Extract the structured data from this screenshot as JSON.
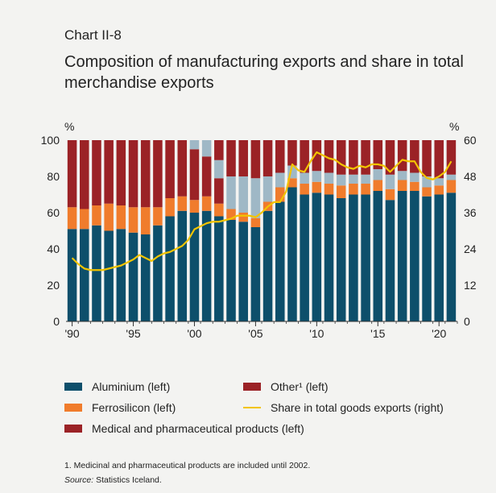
{
  "header": {
    "chart_number": "Chart II-8",
    "title": "Composition of manufacturing exports and share in total merchandise exports"
  },
  "chart_data": {
    "type": "bar",
    "stacked": true,
    "left_axis": {
      "unit": "%",
      "ylim": [
        0,
        100
      ],
      "ticks": [
        "0",
        "20",
        "40",
        "60",
        "80",
        "100"
      ]
    },
    "right_axis": {
      "unit": "%",
      "ylim": [
        0,
        60
      ],
      "ticks": [
        "0",
        "12",
        "24",
        "36",
        "48",
        "60"
      ]
    },
    "x_tick_labels": [
      "'90",
      "'95",
      "'00",
      "'05",
      "'10",
      "'15",
      "'20"
    ],
    "x_tick_years": [
      1990,
      1995,
      2000,
      2005,
      2010,
      2015,
      2020
    ],
    "categories": [
      1990,
      1991,
      1992,
      1993,
      1994,
      1995,
      1996,
      1997,
      1998,
      1999,
      2000,
      2001,
      2002,
      2003,
      2004,
      2005,
      2006,
      2007,
      2008,
      2009,
      2010,
      2011,
      2012,
      2013,
      2014,
      2015,
      2016,
      2017,
      2018,
      2019,
      2020,
      2021
    ],
    "series": [
      {
        "name": "Aluminium (left)",
        "color": "#0d4f6b",
        "axis": "left",
        "values": [
          51,
          51,
          53,
          50,
          51,
          49,
          48,
          53,
          58,
          61,
          60,
          61,
          58,
          56,
          55,
          52,
          61,
          66,
          74,
          70,
          71,
          70,
          68,
          70,
          70,
          72,
          67,
          72,
          72,
          69,
          70,
          71
        ]
      },
      {
        "name": "Ferrosilicon (left)",
        "color": "#f07c2c",
        "axis": "left",
        "values": [
          12,
          11,
          11,
          15,
          13,
          14,
          15,
          10,
          10,
          8,
          7,
          8,
          7,
          6,
          5,
          5,
          5,
          8,
          5,
          6,
          6,
          6,
          7,
          6,
          6,
          6,
          6,
          6,
          5,
          5,
          5,
          7
        ]
      },
      {
        "name": "Medical and pharmaceutical products (left)",
        "color": "#9b2226",
        "axis": "left",
        "values": [
          37,
          38,
          36,
          35,
          36,
          37,
          37,
          37,
          32,
          31,
          28,
          22,
          14,
          0,
          0,
          0,
          0,
          0,
          0,
          0,
          0,
          0,
          0,
          0,
          0,
          0,
          0,
          0,
          0,
          0,
          0,
          0
        ]
      },
      {
        "name": "grey",
        "color": "#9fb8c6",
        "axis": "left",
        "in_legend": false,
        "values": [
          0,
          0,
          0,
          0,
          0,
          0,
          0,
          0,
          0,
          0,
          5,
          9,
          10,
          18,
          20,
          22,
          14,
          8,
          7,
          6,
          6,
          6,
          6,
          5,
          5,
          6,
          8,
          5,
          5,
          6,
          4,
          3
        ]
      },
      {
        "name": "Other¹ (left)",
        "color": "#9b2226",
        "axis": "left",
        "values": [
          0,
          0,
          0,
          0,
          0,
          0,
          0,
          0,
          0,
          0,
          0,
          0,
          11,
          20,
          20,
          21,
          20,
          18,
          14,
          18,
          17,
          18,
          19,
          19,
          19,
          16,
          19,
          17,
          18,
          20,
          21,
          19
        ]
      },
      {
        "name": "Share in total goods exports (right)",
        "color": "#f2c400",
        "type": "line",
        "axis": "right",
        "x": [
          1990,
          1990.5,
          1991,
          1991.5,
          1992,
          1992.5,
          1993,
          1993.5,
          1994,
          1994.5,
          1995,
          1995.5,
          1996,
          1996.5,
          1997,
          1997.5,
          1998,
          1998.5,
          1999,
          1999.5,
          2000,
          2000.5,
          2001,
          2001.5,
          2002,
          2002.5,
          2003,
          2003.5,
          2004,
          2004.5,
          2005,
          2005.5,
          2006,
          2006.5,
          2007,
          2007.5,
          2008,
          2008.5,
          2009,
          2009.5,
          2010,
          2010.5,
          2011,
          2011.5,
          2012,
          2012.5,
          2013,
          2013.5,
          2014,
          2014.5,
          2015,
          2015.5,
          2016,
          2016.5,
          2017,
          2017.5,
          2018,
          2018.5,
          2019,
          2019.5,
          2020,
          2020.5,
          2021
        ],
        "values": [
          21,
          19,
          17.5,
          17,
          17,
          17,
          17.5,
          18,
          18.5,
          19.5,
          20.5,
          22,
          21,
          20,
          21.5,
          22.5,
          23,
          24,
          25,
          27,
          30.5,
          31.5,
          32.5,
          33,
          33,
          33.5,
          34,
          35,
          35,
          35,
          34.5,
          36,
          38,
          39.5,
          39.5,
          43,
          52,
          50,
          49.5,
          53,
          56,
          55,
          54,
          53.5,
          52,
          51,
          50.5,
          51.5,
          51,
          52,
          52,
          51.5,
          49.5,
          51.5,
          53.5,
          53,
          53,
          49.5,
          47.5,
          47,
          48,
          49.5,
          53
        ]
      }
    ]
  },
  "legend": {
    "items": [
      {
        "label": "Aluminium (left)",
        "color": "#0d4f6b",
        "kind": "box"
      },
      {
        "label": "Other¹ (left)",
        "color": "#9b2226",
        "kind": "box"
      },
      {
        "label": "Ferrosilicon (left)",
        "color": "#f07c2c",
        "kind": "box"
      },
      {
        "label": "Share in total goods exports (right)",
        "color": "#f2c400",
        "kind": "line"
      },
      {
        "label": "Medical and pharmaceutical products (left)",
        "color": "#9b2226",
        "kind": "box"
      }
    ]
  },
  "notes": {
    "footnote": "1. Medicinal and pharmaceutical products are included until 2002.",
    "source_label": "Source:",
    "source_text": "Statistics Iceland."
  }
}
